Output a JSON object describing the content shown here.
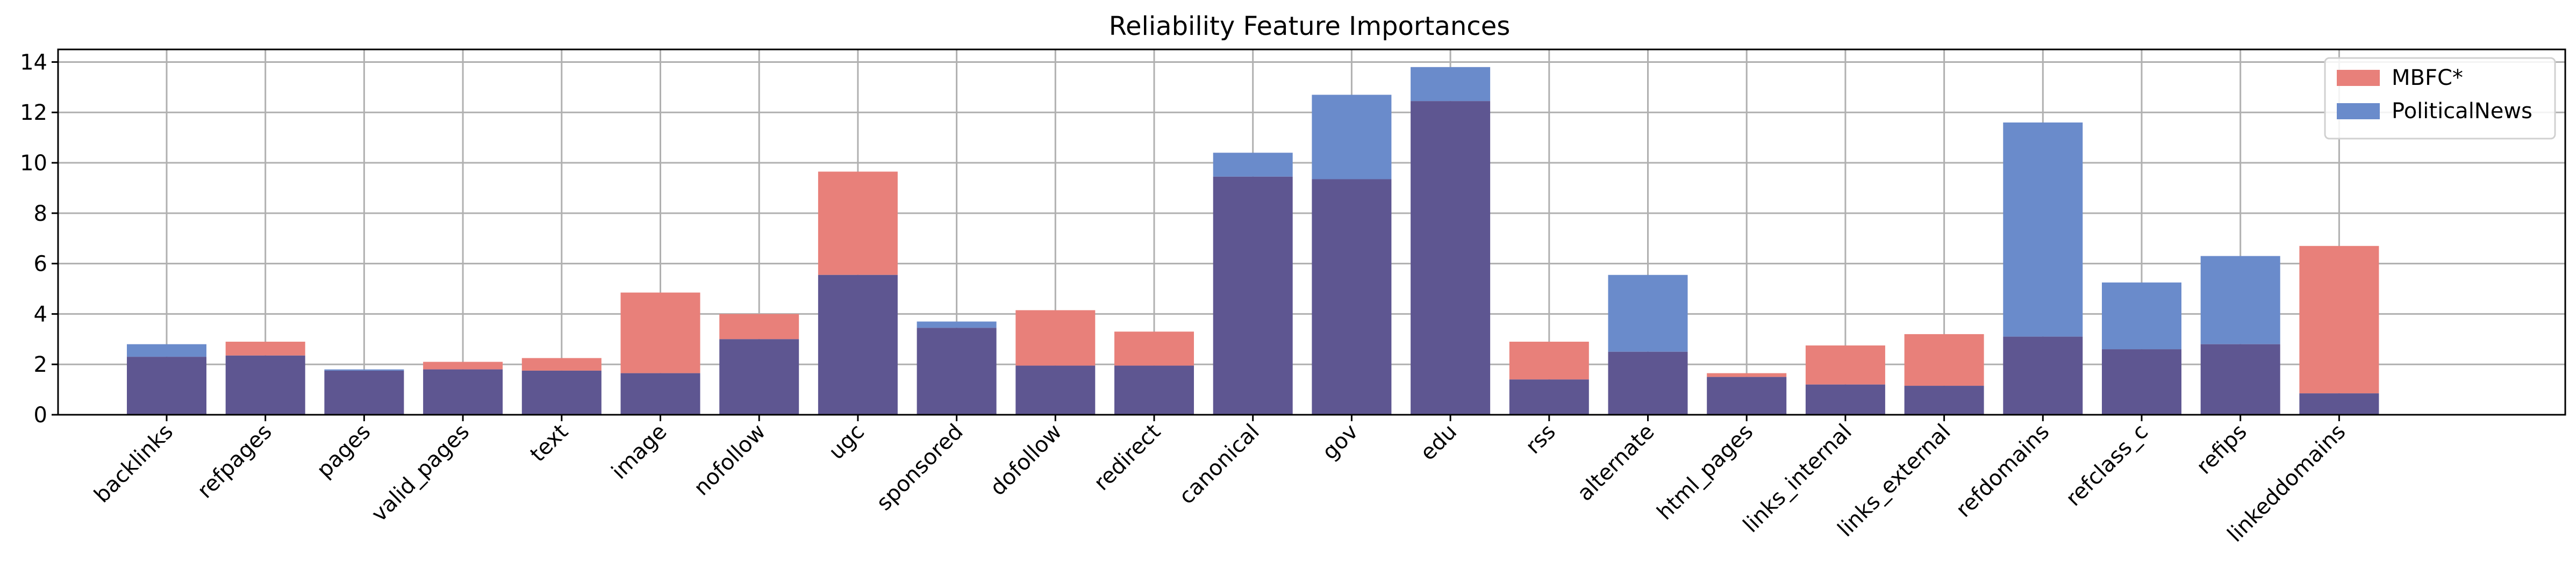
{
  "chart_data": {
    "type": "bar",
    "title": "Reliability Feature Importances",
    "xlabel": "",
    "ylabel": "",
    "ylim": [
      0,
      14.5
    ],
    "yticks": [
      0,
      2,
      4,
      6,
      8,
      10,
      12,
      14
    ],
    "grid": true,
    "legend_position": "top-right",
    "overlay": true,
    "overlap_color": "#5e5691",
    "categories": [
      "backlinks",
      "refpages",
      "pages",
      "valid_pages",
      "text",
      "image",
      "nofollow",
      "ugc",
      "sponsored",
      "dofollow",
      "redirect",
      "canonical",
      "gov",
      "edu",
      "rss",
      "alternate",
      "html_pages",
      "links_internal",
      "links_external",
      "refdomains",
      "refclass_c",
      "refips",
      "linkeddomains"
    ],
    "series": [
      {
        "name": "MBFC*",
        "color": "#e8807a",
        "values": [
          2.3,
          2.9,
          1.75,
          2.1,
          2.25,
          4.85,
          4.0,
          9.65,
          3.45,
          4.15,
          3.3,
          9.45,
          9.35,
          12.45,
          2.9,
          2.5,
          1.65,
          2.75,
          3.2,
          3.1,
          2.6,
          2.8,
          6.7
        ]
      },
      {
        "name": "PoliticalNews",
        "color": "#6a8bcb",
        "values": [
          2.8,
          2.35,
          1.8,
          1.8,
          1.75,
          1.65,
          3.0,
          5.55,
          3.7,
          1.95,
          1.95,
          10.4,
          12.7,
          13.8,
          1.4,
          5.55,
          1.5,
          1.2,
          1.15,
          11.6,
          5.25,
          6.3,
          0.85
        ]
      }
    ]
  }
}
